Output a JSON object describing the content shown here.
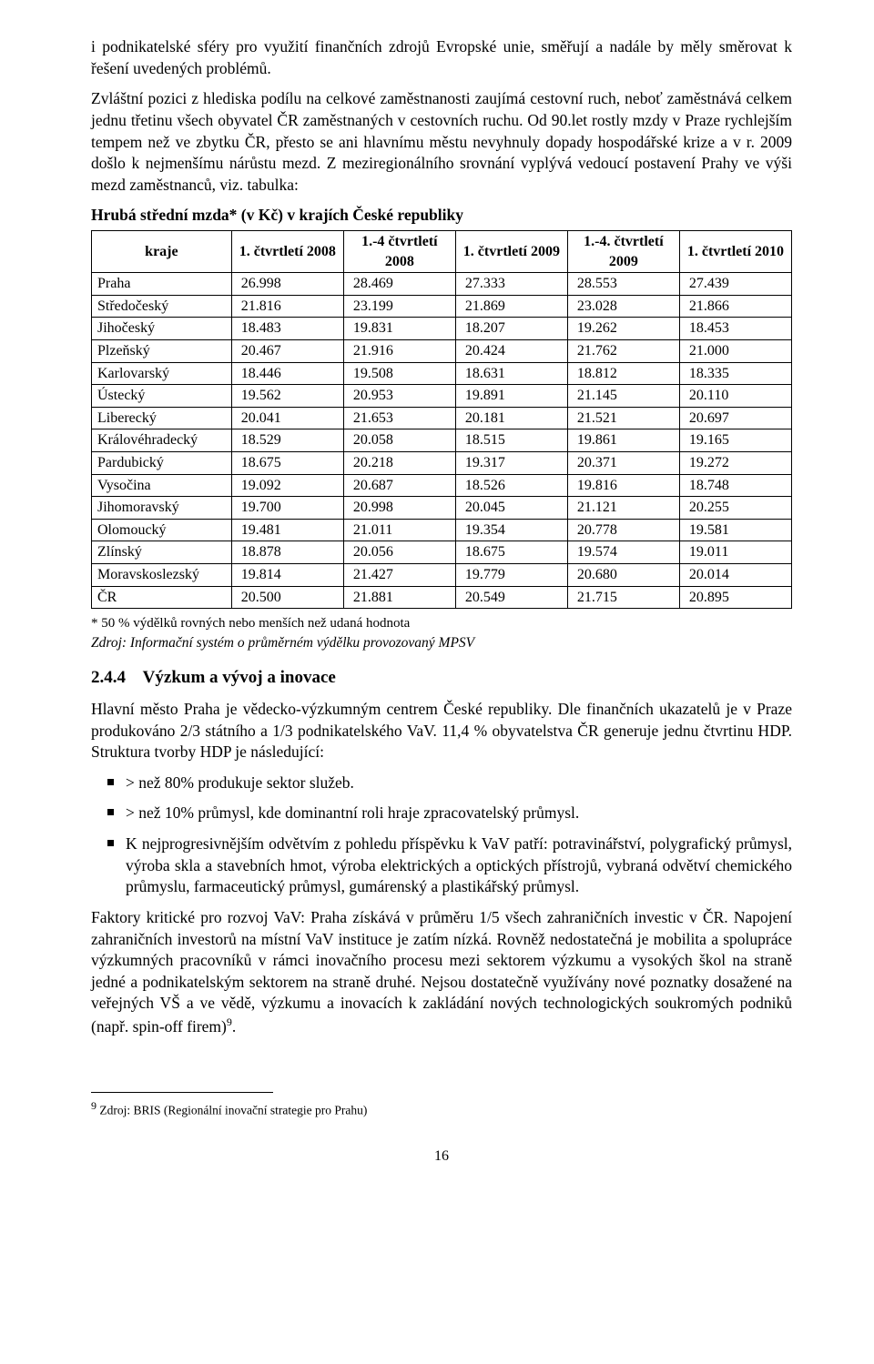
{
  "paragraphs": {
    "p1": "i podnikatelské sféry pro využití finančních zdrojů Evropské unie, směřují a nadále by měly směrovat k řešení uvedených problémů.",
    "p2": "Zvláštní pozici z hlediska podílu na celkové zaměstnanosti zaujímá cestovní ruch, neboť zaměstnává celkem jednu třetinu všech obyvatel ČR zaměstnaných v cestovních ruchu. Od 90.let rostly mzdy v Praze rychlejším tempem než ve zbytku ČR, přesto se ani hlavnímu městu nevyhnuly dopady hospodářské krize a v r. 2009 došlo k nejmenšímu nárůstu mezd. Z meziregionálního srovnání vyplývá vedoucí postavení Prahy ve výši mezd zaměstnanců, viz. tabulka:"
  },
  "table": {
    "title": "Hrubá střední mzda* (v Kč) v krajích České republiky",
    "headers": [
      "kraje",
      "1. čtvrtletí 2008",
      "1.-4 čtvrtletí 2008",
      "1. čtvrtletí 2009",
      "1.-4. čtvrtletí 2009",
      "1. čtvrtletí 2010"
    ],
    "rows": [
      [
        "Praha",
        "26.998",
        "28.469",
        "27.333",
        "28.553",
        "27.439"
      ],
      [
        "Středočeský",
        "21.816",
        "23.199",
        "21.869",
        "23.028",
        "21.866"
      ],
      [
        "Jihočeský",
        "18.483",
        "19.831",
        "18.207",
        "19.262",
        "18.453"
      ],
      [
        "Plzeňský",
        "20.467",
        "21.916",
        "20.424",
        "21.762",
        "21.000"
      ],
      [
        "Karlovarský",
        "18.446",
        "19.508",
        "18.631",
        "18.812",
        "18.335"
      ],
      [
        "Ústecký",
        "19.562",
        "20.953",
        "19.891",
        "21.145",
        "20.110"
      ],
      [
        "Liberecký",
        "20.041",
        "21.653",
        "20.181",
        "21.521",
        "20.697"
      ],
      [
        "Královéhradecký",
        "18.529",
        "20.058",
        "18.515",
        "19.861",
        "19.165"
      ],
      [
        "Pardubický",
        "18.675",
        "20.218",
        "19.317",
        "20.371",
        "19.272"
      ],
      [
        "Vysočina",
        "19.092",
        "20.687",
        "18.526",
        "19.816",
        "18.748"
      ],
      [
        "Jihomoravský",
        "19.700",
        "20.998",
        "20.045",
        "21.121",
        "20.255"
      ],
      [
        "Olomoucký",
        "19.481",
        "21.011",
        "19.354",
        "20.778",
        "19.581"
      ],
      [
        "Zlínský",
        "18.878",
        "20.056",
        "18.675",
        "19.574",
        "19.011"
      ],
      [
        "Moravskoslezský",
        "19.814",
        "21.427",
        "19.779",
        "20.680",
        "20.014"
      ],
      [
        "ČR",
        "20.500",
        "21.881",
        "20.549",
        "21.715",
        "20.895"
      ]
    ],
    "footnote": "* 50 % výdělků rovných nebo menších než udaná hodnota",
    "source": "Zdroj: Informační systém o průměrném výdělku provozovaný MPSV"
  },
  "section": {
    "number": "2.4.4",
    "title": "Výzkum a vývoj a inovace",
    "intro": "Hlavní město Praha je vědecko-výzkumným centrem České republiky. Dle finančních ukazatelů je v Praze produkováno 2/3 státního a 1/3 podnikatelského VaV. 11,4 % obyvatelstva ČR generuje jednu čtvrtinu HDP. Struktura tvorby HDP je následující:",
    "bullets": [
      "> než 80% produkuje sektor služeb.",
      "> než 10% průmysl, kde dominantní roli hraje zpracovatelský průmysl.",
      "K nejprogresivnějším odvětvím z pohledu příspěvku k VaV patří: potravinářství, polygrafický průmysl, výroba skla a stavebních hmot, výroba elektrických a optických přístrojů, vybraná odvětví chemického průmyslu, farmaceutický průmysl, gumárenský a plastikářský průmysl."
    ],
    "p_after": "Faktory kritické pro rozvoj VaV: Praha získává v průměru 1/5 všech zahraničních investic v ČR. Napojení zahraničních investorů na místní VaV instituce je zatím nízká. Rovněž nedostatečná je mobilita a spolupráce výzkumných pracovníků v rámci inovačního procesu mezi sektorem výzkumu a vysokých škol na straně jedné a podnikatelským sektorem na straně druhé. Nejsou dostatečně využívány nové poznatky dosažené na veřejných VŠ a ve vědě, výzkumu a inovacích k zakládání nových technologických soukromých podniků (např. spin-off firem)",
    "sup": "9",
    "p_after_tail": "."
  },
  "bottom_footnote": {
    "marker": "9",
    "text": " Zdroj: BRIS (Regionální inovační strategie pro Prahu)"
  },
  "page_number": "16"
}
